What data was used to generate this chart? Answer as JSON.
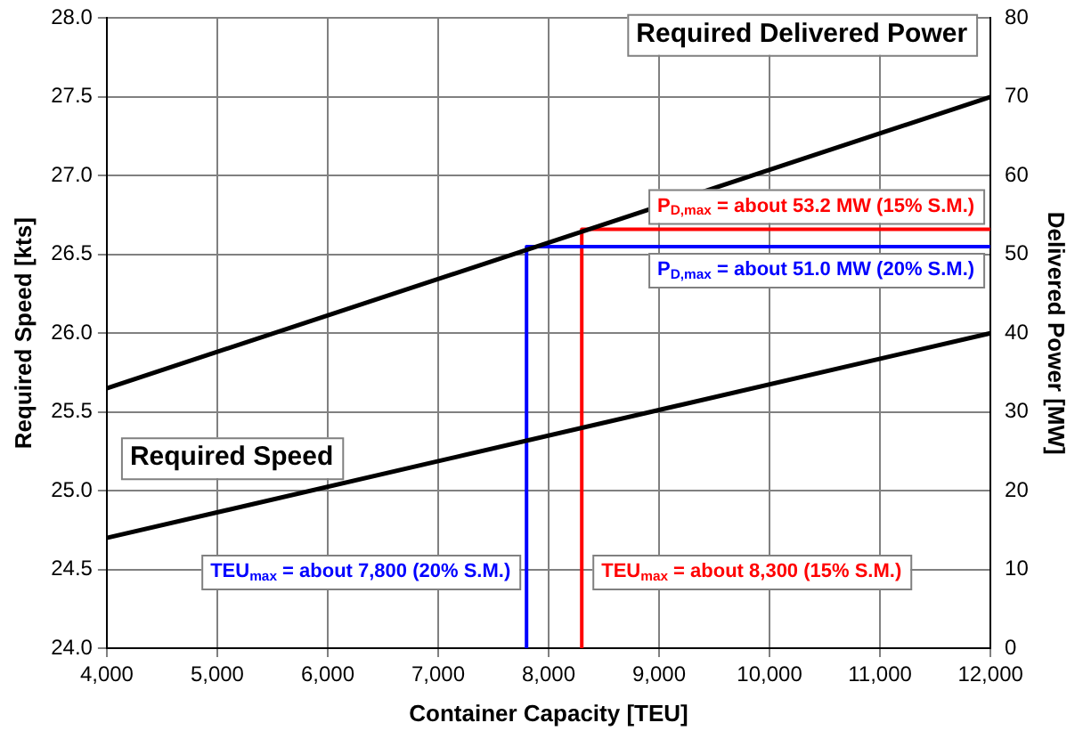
{
  "chart_data": {
    "type": "line",
    "xlabel": "Container Capacity [TEU]",
    "ylabel": "Required Speed [kts]",
    "y2label": "Delivered Power [MW]",
    "xlim": [
      4000,
      12000
    ],
    "xticks": [
      {
        "value": 4000,
        "label": "4,000"
      },
      {
        "value": 5000,
        "label": "5,000"
      },
      {
        "value": 6000,
        "label": "6,000"
      },
      {
        "value": 7000,
        "label": "7,000"
      },
      {
        "value": 8000,
        "label": "8,000"
      },
      {
        "value": 9000,
        "label": "9,000"
      },
      {
        "value": 10000,
        "label": "10,000"
      },
      {
        "value": 11000,
        "label": "11,000"
      },
      {
        "value": 12000,
        "label": "12,000"
      }
    ],
    "ylim": [
      24,
      28
    ],
    "yticks": [
      {
        "value": 24,
        "label": "24.0"
      },
      {
        "value": 24.5,
        "label": "24.5"
      },
      {
        "value": 25,
        "label": "25.0"
      },
      {
        "value": 25.5,
        "label": "25.5"
      },
      {
        "value": 26,
        "label": "26.0"
      },
      {
        "value": 26.5,
        "label": "26.5"
      },
      {
        "value": 27,
        "label": "27.0"
      },
      {
        "value": 27.5,
        "label": "27.5"
      },
      {
        "value": 28,
        "label": "28.0"
      }
    ],
    "y2lim": [
      0,
      80
    ],
    "y2ticks": [
      0,
      10,
      20,
      30,
      40,
      50,
      60,
      70,
      80
    ],
    "grid": true,
    "legend": false,
    "marker": "none",
    "line_style": "solid",
    "series": [
      {
        "name": "Required Speed",
        "color": "#000000",
        "x": [
          4000,
          12000
        ],
        "values": [
          24.7,
          26.0
        ]
      },
      {
        "name": "Required Delivered Power",
        "color": "#000000",
        "axis": "y2",
        "x": [
          4000,
          12000
        ],
        "values": [
          33,
          70
        ]
      },
      {
        "color": "#0000ff",
        "axis": "y2",
        "x": [
          7800,
          7800,
          12000
        ],
        "values": [
          0,
          51.0,
          51.0
        ]
      },
      {
        "color": "#ff0000",
        "axis": "y2",
        "x": [
          8300,
          8300,
          12000
        ],
        "values": [
          0,
          53.2,
          53.2
        ]
      }
    ],
    "annotations": [
      "P$_{D,max}$ = about 53.2 MW (15% S.M.)",
      "P$_{D,max}$ = about 51.0 MW (20% S.M.)",
      "TEU$_{max}$ = about 7,800 (20% S.M.)",
      "TEU$_{max}$ = about 8,300 (15% S.M.)"
    ]
  }
}
